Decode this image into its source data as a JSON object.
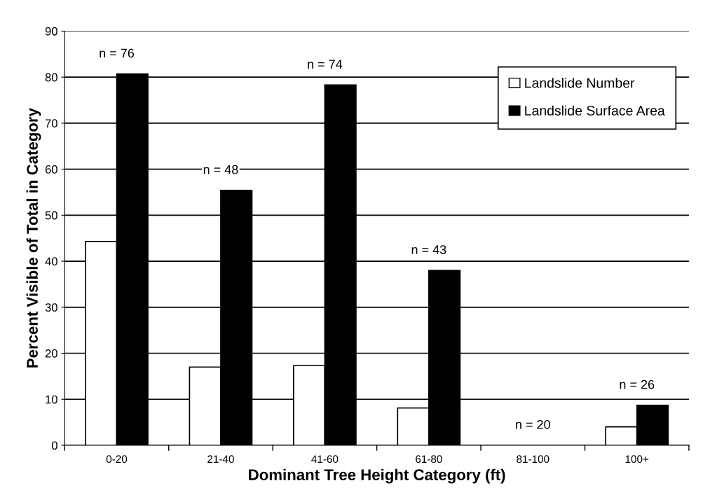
{
  "chart_data": {
    "type": "bar",
    "xlabel": "Dominant Tree Height Category (ft)",
    "ylabel": "Percent Visible of Total in Category",
    "categories": [
      "0-20",
      "21-40",
      "41-60",
      "61-80",
      "81-100",
      "100+"
    ],
    "series": [
      {
        "name": "Landslide Number",
        "color": "#ffffff",
        "values": [
          44.3,
          17.0,
          17.3,
          8.1,
          null,
          4.0
        ]
      },
      {
        "name": "Landslide Surface Area",
        "color": "#000000",
        "values": [
          80.7,
          55.4,
          78.3,
          38.0,
          null,
          8.7
        ]
      }
    ],
    "ylim": [
      0,
      90
    ],
    "yticks": [
      0,
      10,
      20,
      30,
      40,
      50,
      60,
      70,
      80,
      90
    ],
    "grid": "y",
    "legend": "top right",
    "annotations": [
      "n = 76",
      "n = 48",
      "n = 74",
      "n = 43",
      "n = 20",
      "n = 26"
    ]
  }
}
